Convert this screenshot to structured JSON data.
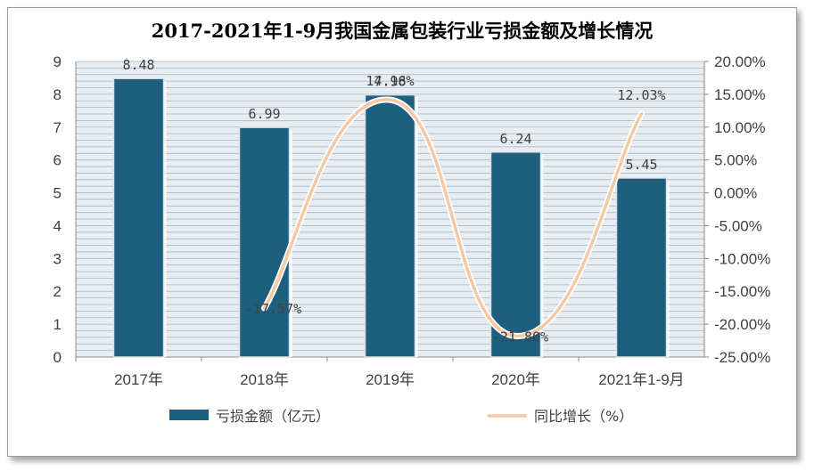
{
  "chart_data": {
    "type": "bar+line",
    "title": "2017-2021年1-9月我国金属包装行业亏损金额及增长情况",
    "categories": [
      "2017年",
      "2018年",
      "2019年",
      "2020年",
      "2021年1-9月"
    ],
    "series": [
      {
        "name": "亏损金额（亿元）",
        "type": "bar",
        "axis": "left",
        "values": [
          8.48,
          6.99,
          7.98,
          6.24,
          5.45
        ],
        "labels": [
          "8.48",
          "6.99",
          "7.98",
          "6.24",
          "5.45"
        ]
      },
      {
        "name": "同比增长（%）",
        "type": "line",
        "smooth": true,
        "axis": "right",
        "values": [
          null,
          -17.57,
          14.16,
          -21.8,
          12.03
        ],
        "labels": [
          "",
          "-17.57%",
          "14.16%",
          "-21.80%",
          "12.03%"
        ]
      }
    ],
    "y_left": {
      "min": 0,
      "max": 9,
      "ticks": [
        "0",
        "1",
        "2",
        "3",
        "4",
        "5",
        "6",
        "7",
        "8",
        "9"
      ]
    },
    "y_right": {
      "min": -25,
      "max": 20,
      "ticks": [
        "-25.00%",
        "-20.00%",
        "-15.00%",
        "-10.00%",
        "-5.00%",
        "0.00%",
        "5.00%",
        "10.00%",
        "15.00%",
        "20.00%"
      ]
    },
    "grid": true,
    "legend_position": "bottom",
    "colors": {
      "bar": "#1e5f80",
      "line": "#f5c9a4",
      "grid": "#a9b4c0",
      "plot_bg": "#e8edf2"
    }
  }
}
